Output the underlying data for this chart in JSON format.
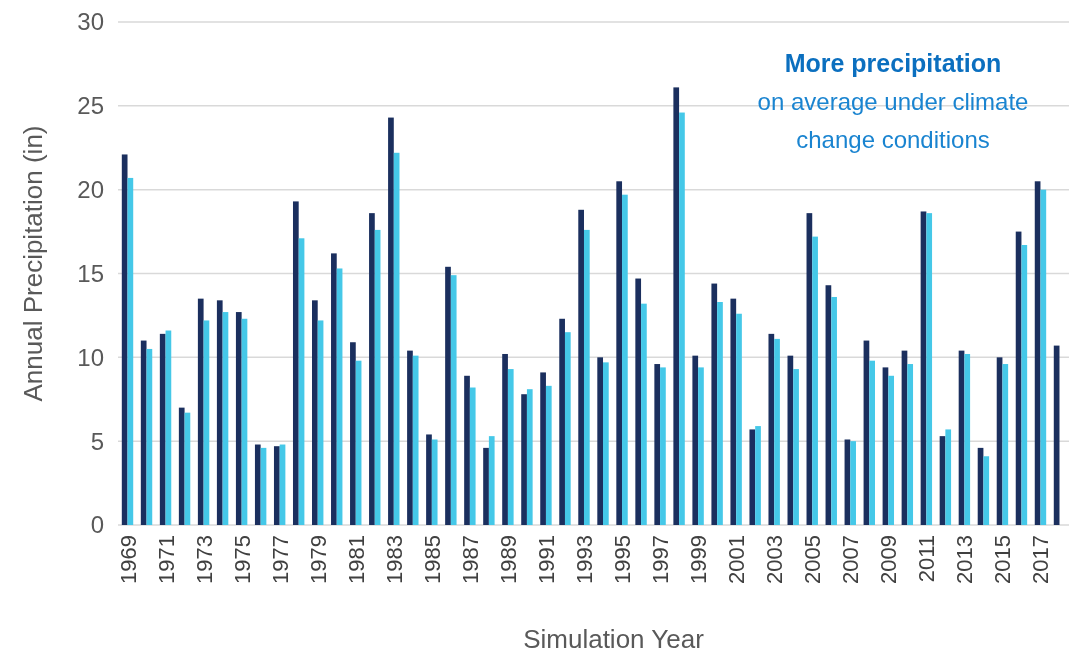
{
  "chart_data": {
    "type": "bar",
    "xlabel": "Simulation Year",
    "ylabel": "Annual Precipitation (in)",
    "categories": [
      "1969",
      null,
      "1971",
      null,
      "1973",
      null,
      "1975",
      null,
      "1977",
      null,
      "1979",
      null,
      "1981",
      null,
      "1983",
      null,
      "1985",
      null,
      "1987",
      null,
      "1989",
      null,
      "1991",
      null,
      "1993",
      null,
      "1995",
      null,
      "1997",
      null,
      "1999",
      null,
      "2001",
      null,
      "2003",
      null,
      "2005",
      null,
      "2007",
      null,
      "2009",
      null,
      "2011",
      null,
      "2013",
      null,
      "2015",
      null,
      "2017",
      null
    ],
    "series": [
      {
        "color": "#1b2f5e",
        "values": [
          22.1,
          11.0,
          11.4,
          7.0,
          13.5,
          13.4,
          12.7,
          4.8,
          4.7,
          19.3,
          13.4,
          16.2,
          10.9,
          18.6,
          24.3,
          10.4,
          5.4,
          15.4,
          8.9,
          4.6,
          10.2,
          7.8,
          9.1,
          12.3,
          18.8,
          10.0,
          20.5,
          14.7,
          9.6,
          26.1,
          10.1,
          14.4,
          13.5,
          5.7,
          11.4,
          10.1,
          18.6,
          14.3,
          5.1,
          11.0,
          9.4,
          10.4,
          18.7,
          5.3,
          10.4,
          4.6,
          10.0,
          17.5,
          20.5,
          10.7
        ]
      },
      {
        "color": "#45c8e8",
        "values": [
          20.7,
          10.5,
          11.6,
          6.7,
          12.2,
          12.7,
          12.3,
          4.6,
          4.8,
          17.1,
          12.2,
          15.3,
          9.8,
          17.6,
          22.2,
          10.1,
          5.1,
          14.9,
          8.2,
          5.3,
          9.3,
          8.1,
          8.3,
          11.5,
          17.6,
          9.7,
          19.7,
          13.2,
          9.4,
          24.6,
          9.4,
          13.3,
          12.6,
          5.9,
          11.1,
          9.3,
          17.2,
          13.6,
          5.0,
          9.8,
          8.9,
          9.6,
          18.6,
          5.7,
          10.2,
          4.1,
          9.6,
          16.7,
          20.0,
          null
        ]
      }
    ],
    "ylim": [
      0,
      30
    ],
    "yticks": [
      0,
      5,
      10,
      15,
      20,
      25,
      30
    ],
    "grid": "y",
    "annotations": [
      "More precipitation",
      "on average under climate\nchange conditions"
    ]
  }
}
